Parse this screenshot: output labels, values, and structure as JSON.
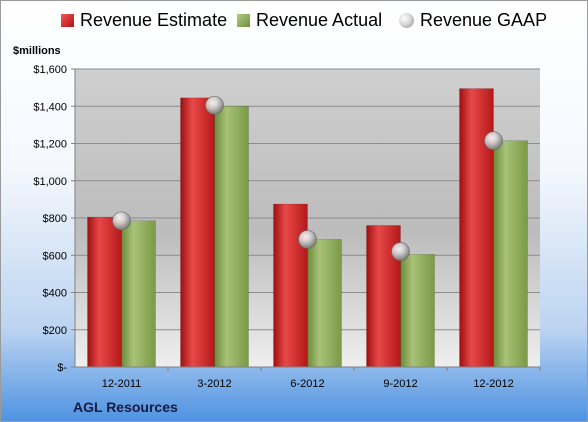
{
  "legend": {
    "estimate": "Revenue Estimate",
    "actual": "Revenue Actual",
    "gaap": "Revenue GAAP"
  },
  "units_label": "$millions",
  "company": "AGL Resources",
  "colors": {
    "estimate": "#d42a2a",
    "actual": "#8cab57",
    "gaap": "#c8c8c8",
    "plot_background": "#c0c0c0"
  },
  "chart_data": {
    "type": "bar",
    "categories": [
      "12-2011",
      "3-2012",
      "6-2012",
      "9-2012",
      "12-2012"
    ],
    "series": [
      {
        "name": "Revenue Estimate",
        "values": [
          805,
          1445,
          875,
          760,
          1495
        ]
      },
      {
        "name": "Revenue Actual",
        "values": [
          785,
          1400,
          685,
          605,
          1215
        ]
      },
      {
        "name": "Revenue GAAP",
        "type": "scatter",
        "values": [
          785,
          1405,
          685,
          620,
          1215
        ]
      }
    ],
    "y_ticks": [
      0,
      200,
      400,
      600,
      800,
      1000,
      1200,
      1400,
      1600
    ],
    "y_tick_labels": [
      "$-",
      "$200",
      "$400",
      "$600",
      "$800",
      "$1,000",
      "$1,200",
      "$1,400",
      "$1,600"
    ],
    "ylim": [
      0,
      1600
    ],
    "ylabel": "$millions",
    "grid": true,
    "legend_position": "top"
  }
}
